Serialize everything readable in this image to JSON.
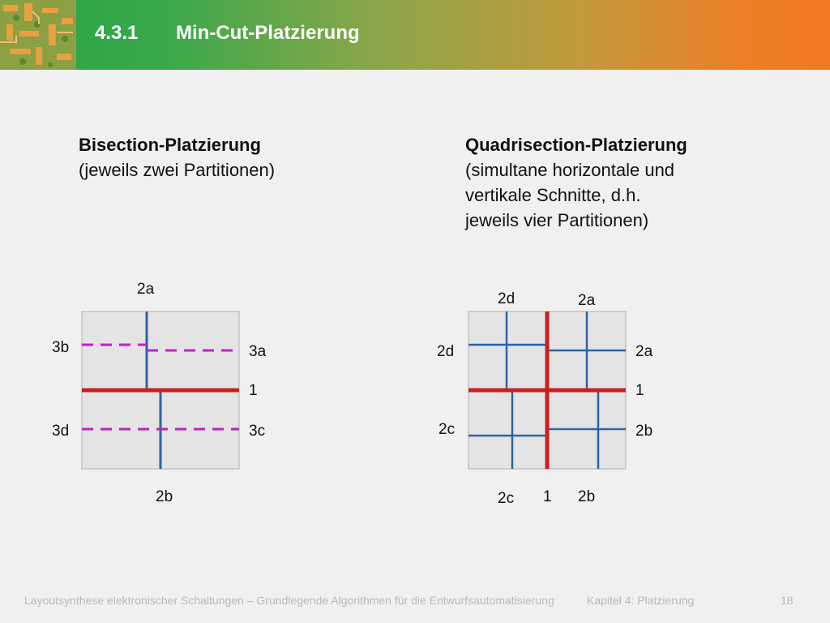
{
  "header": {
    "section_number": "4.3.1",
    "section_title": "Min-Cut-Platzierung"
  },
  "left": {
    "heading": "Bisection-Platzierung",
    "lines": [
      "(jeweils zwei Partitionen)"
    ],
    "labels": {
      "top": "2a",
      "bottom": "2b",
      "left_upper": "3b",
      "left_lower": "3d",
      "right_upper": "3a",
      "right_mid": "1",
      "right_lower": "3c"
    }
  },
  "right": {
    "heading": "Quadrisection-Platzierung",
    "lines": [
      "(simultane horizontale und",
      "vertikale Schnitte, d.h.",
      "jeweils vier Partitionen)"
    ],
    "labels": {
      "top_left": "2d",
      "top_right": "2a",
      "left_upper": "2d",
      "left_lower": "2c",
      "right_upper": "2a",
      "right_mid": "1",
      "right_lower": "2b",
      "bottom_left": "2c",
      "bottom_mid": "1",
      "bottom_right": "2b"
    }
  },
  "colors": {
    "cut_primary": "#cc1f1f",
    "cut_secondary": "#2a64a8",
    "cut_tertiary": "#c21fc8"
  },
  "footer": {
    "course": "Layoutsynthese elektronischer Schaltungen – Grundlegende Algorithmen für die Entwurfsautomatisierung",
    "chapter": "Kapitel 4: Platzierung",
    "page": "18"
  }
}
